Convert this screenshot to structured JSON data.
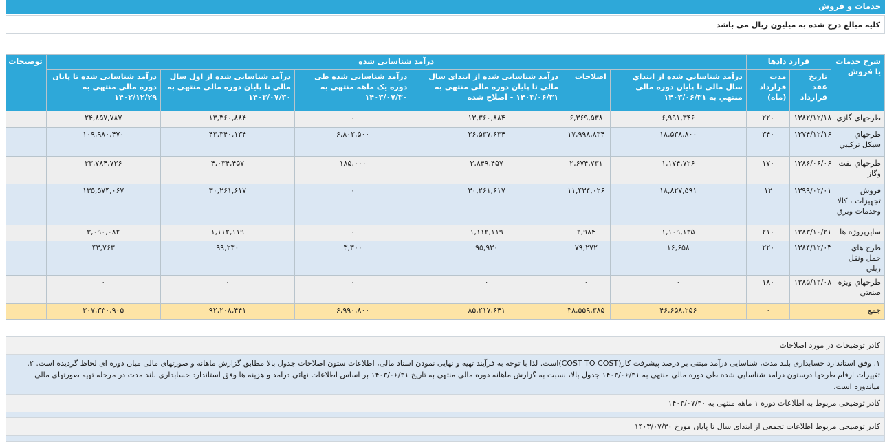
{
  "page": {
    "title": "خدمات و فروش",
    "subtitle": "کلیه مبالغ درج شده به میلیون ریال می باشد"
  },
  "table": {
    "header_groups": {
      "service": "شرح خدمات یا فروش",
      "contracts": "قرارد دادها",
      "revenue": "درآمد شناسایی شده",
      "notes": "توضیحات"
    },
    "columns": {
      "contract_date": "تاریخ عقد قرارداد",
      "duration": "مدت قرارداد (ماه)",
      "rev_start_prior": "درآمد شناسايي شده از ابتداي سال مالي تا پايان دوره مالي منتهي به ۱۴۰۳/۰۶/۳۱",
      "corrections": "اصلاحات",
      "rev_corrected": "درآمد شناسایی شده از ابتدای سال مالی تا پایان دوره مالی منتهی به ۱۴۰۳/۰۶/۳۱ - اصلاح شده",
      "rev_month": "درآمد شناسایی شده طی دوره یک ماهه منتهی به ۱۴۰۳/۰۷/۳۰",
      "rev_ytd": "درآمد شناسایی شده از اول سال مالی تا پایان دوره مالی منتهی به ۱۴۰۳/۰۷/۳۰",
      "rev_prev_year": "درآمد شناسایی شده تا پایان دوره مالی منتهی به ۱۴۰۲/۱۲/۲۹"
    },
    "rows": [
      {
        "name": "طرحهاي گازي",
        "date": "۱۳۸۲/۱۲/۱۸",
        "duration": "۲۲۰",
        "c1": "۶,۹۹۱,۳۴۶",
        "c2": "۶,۳۶۹,۵۳۸",
        "c3": "۱۳,۳۶۰,۸۸۴",
        "c4": "۰",
        "c5": "۱۳,۳۶۰,۸۸۴",
        "c6": "۲۴,۸۵۷,۷۸۷",
        "note": ""
      },
      {
        "name": "طرحهاي سيكل تركيبي",
        "date": "۱۳۷۴/۱۲/۱۶",
        "duration": "۳۴۰",
        "c1": "۱۸,۵۳۸,۸۰۰",
        "c2": "۱۷,۹۹۸,۸۳۴",
        "c3": "۳۶,۵۳۷,۶۳۴",
        "c4": "۶,۸۰۲,۵۰۰",
        "c5": "۴۳,۳۴۰,۱۳۴",
        "c6": "۱۰۹,۹۸۰,۴۷۰",
        "note": ""
      },
      {
        "name": "طرحهاي نفت وگاز",
        "date": "۱۳۸۶/۰۶/۰۶",
        "duration": "۱۷۰",
        "c1": "۱,۱۷۴,۷۲۶",
        "c2": "۲,۶۷۴,۷۳۱",
        "c3": "۳,۸۴۹,۴۵۷",
        "c4": "۱۸۵,۰۰۰",
        "c5": "۴,۰۳۴,۴۵۷",
        "c6": "۳۳,۷۸۴,۷۳۶",
        "note": ""
      },
      {
        "name": "فروش تجهيزات ، كالا وخدمات وبرق",
        "date": "۱۳۹۹/۰۲/۰۱",
        "duration": "۱۲",
        "c1": "۱۸,۸۲۷,۵۹۱",
        "c2": "۱۱,۴۳۴,۰۲۶",
        "c3": "۳۰,۲۶۱,۶۱۷",
        "c4": "۰",
        "c5": "۳۰,۲۶۱,۶۱۷",
        "c6": "۱۳۵,۵۷۴,۰۶۷",
        "note": ""
      },
      {
        "name": "سايرپروژه ها",
        "date": "۱۳۸۳/۱۰/۲۱",
        "duration": "۲۱۰",
        "c1": "۱,۱۰۹,۱۳۵",
        "c2": "۲,۹۸۴",
        "c3": "۱,۱۱۲,۱۱۹",
        "c4": "۰",
        "c5": "۱,۱۱۲,۱۱۹",
        "c6": "۳,۰۹۰,۰۸۲",
        "note": ""
      },
      {
        "name": "طرح هاي حمل ونقل ريلي",
        "date": "۱۳۸۴/۱۲/۰۳",
        "duration": "۲۲۰",
        "c1": "۱۶,۶۵۸",
        "c2": "۷۹,۲۷۲",
        "c3": "۹۵,۹۳۰",
        "c4": "۳,۳۰۰",
        "c5": "۹۹,۲۳۰",
        "c6": "۴۳,۷۶۳",
        "note": ""
      },
      {
        "name": "طرحهاي ويژه صنعتي",
        "date": "۱۳۸۵/۱۲/۰۸",
        "duration": "۱۸۰",
        "c1": "۰",
        "c2": "۰",
        "c3": "۰",
        "c4": "۰",
        "c5": "۰",
        "c6": "۰",
        "note": ""
      }
    ],
    "total": {
      "name": "جمع",
      "date": "",
      "duration": "۰",
      "c1": "۴۶,۶۵۸,۲۵۶",
      "c2": "۳۸,۵۵۹,۳۸۵",
      "c3": "۸۵,۲۱۷,۶۴۱",
      "c4": "۶,۹۹۰,۸۰۰",
      "c5": "۹۲,۲۰۸,۴۴۱",
      "c6": "۳۰۷,۳۳۰,۹۰۵",
      "note": ""
    }
  },
  "notes": {
    "corrections_header": "کادر توضیحات در مورد اصلاحات",
    "corrections_text": "۱. وفق استاندارد حسابداری بلند مدت، شناسایی درآمد مبتنی بر درصد پیشرفت کار(COST TO COST)است. لذا با توجه به فرآیند تهیه و نهایی نمودن اسناد مالی، اطلاعات ستون اصلاحات جدول بالا مطابق گزارش ماهانه و صورتهای مالی میان دوره ای لحاظ گردیده است. ۲. تغییرات ارقام طرحها درستون درآمد شناسایی شده طی دوره مالی منتهی به ۱۴۰۳/۰۶/۳۱ جدول بالا، نسبت به گزارش ماهانه دوره مالی منتهی به تاریخ ۱۴۰۳/۰۶/۳۱ بر اساس اطلاعات نهائی درآمد و هزینه ها وفق استاندارد حسابداری بلند مدت در مرحله تهیه صورتهای مالی میاندوره است.",
    "monthly_line": "کادر توضیحی مربوط به اطلاعات دوره ۱ ماهه منتهی به ۱۴۰۳/۰۷/۳۰",
    "cumulative_line": "کادر توضیحی مربوط اطلاعات تجمعی از ابتدای سال تا پایان مورخ ۱۴۰۳/۰۷/۳۰"
  }
}
